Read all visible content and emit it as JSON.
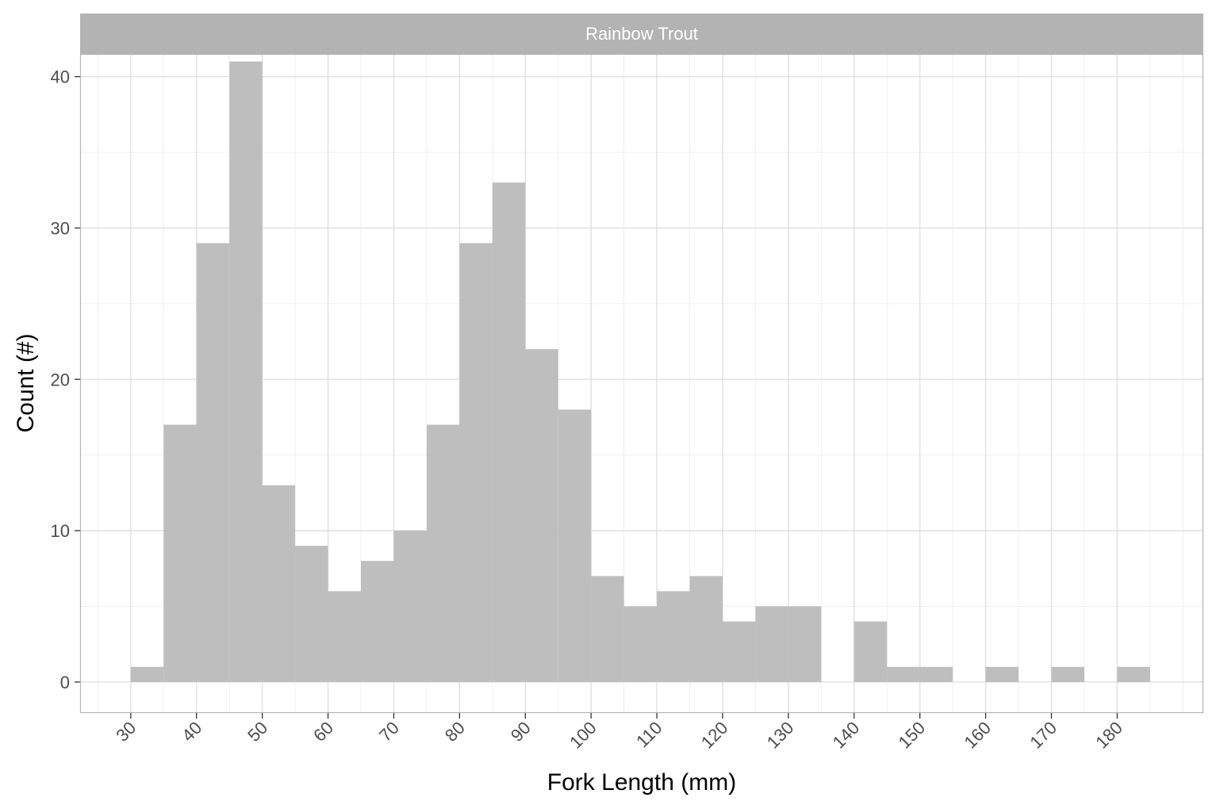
{
  "chart_data": {
    "type": "bar",
    "facet_label": "Rainbow Trout",
    "xlabel": "Fork Length (mm)",
    "ylabel": "Count (#)",
    "bin_width": 5,
    "bins": [
      {
        "start": 30,
        "count": 1
      },
      {
        "start": 35,
        "count": 17
      },
      {
        "start": 40,
        "count": 29
      },
      {
        "start": 45,
        "count": 41
      },
      {
        "start": 50,
        "count": 13
      },
      {
        "start": 55,
        "count": 9
      },
      {
        "start": 60,
        "count": 6
      },
      {
        "start": 65,
        "count": 8
      },
      {
        "start": 70,
        "count": 10
      },
      {
        "start": 75,
        "count": 17
      },
      {
        "start": 80,
        "count": 29
      },
      {
        "start": 85,
        "count": 33
      },
      {
        "start": 90,
        "count": 22
      },
      {
        "start": 95,
        "count": 18
      },
      {
        "start": 100,
        "count": 7
      },
      {
        "start": 105,
        "count": 5
      },
      {
        "start": 110,
        "count": 6
      },
      {
        "start": 115,
        "count": 7
      },
      {
        "start": 120,
        "count": 4
      },
      {
        "start": 125,
        "count": 5
      },
      {
        "start": 130,
        "count": 5
      },
      {
        "start": 135,
        "count": 0
      },
      {
        "start": 140,
        "count": 4
      },
      {
        "start": 145,
        "count": 1
      },
      {
        "start": 150,
        "count": 1
      },
      {
        "start": 155,
        "count": 0
      },
      {
        "start": 160,
        "count": 1
      },
      {
        "start": 165,
        "count": 0
      },
      {
        "start": 170,
        "count": 1
      },
      {
        "start": 175,
        "count": 0
      },
      {
        "start": 180,
        "count": 1
      }
    ],
    "xlim": [
      22.3,
      193.1
    ],
    "ylim": [
      -2.05,
      41.5
    ],
    "x_ticks": [
      "30",
      "40",
      "50",
      "60",
      "70",
      "80",
      "90",
      "100",
      "110",
      "120",
      "130",
      "140",
      "150",
      "160",
      "170",
      "180"
    ],
    "y_ticks": [
      "0",
      "10",
      "20",
      "30",
      "40"
    ],
    "grid": true,
    "legend": "none",
    "colors": {
      "bar": "#bababa",
      "strip": "#b3b3b3",
      "panel_border": "#b3b3b3",
      "grid_major": "#dedede",
      "grid_minor": "#efefef"
    }
  }
}
